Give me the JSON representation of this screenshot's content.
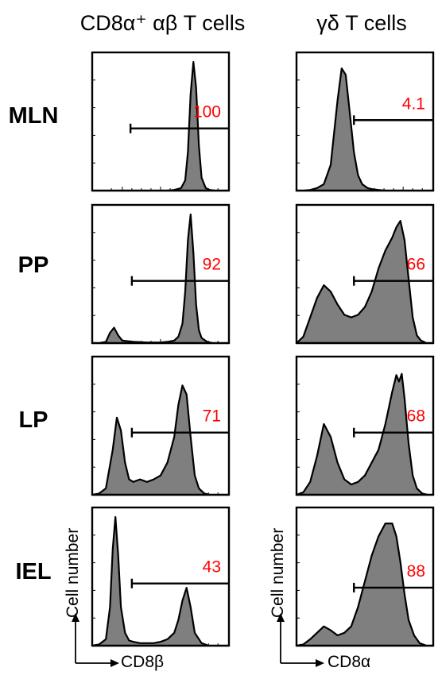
{
  "columns": [
    {
      "title": "CD8α⁺ αβ T cells",
      "xlabel": "CD8β",
      "ylabel": "Cell number"
    },
    {
      "title": "γδ T cells",
      "xlabel": "CD8α",
      "ylabel": "Cell number"
    }
  ],
  "rows": [
    "MLN",
    "PP",
    "LP",
    "IEL"
  ],
  "colors": {
    "fill": "#7f7f7f",
    "stroke": "#000000",
    "gate_label": "#ff0000"
  },
  "chart_data": [
    {
      "type": "area",
      "id": "ab-MLN",
      "gate_label": "100",
      "gate": [
        0.28,
        1.0
      ],
      "gate_level": 0.55,
      "x": [
        0,
        0.05,
        0.1,
        0.15,
        0.2,
        0.25,
        0.3,
        0.35,
        0.4,
        0.45,
        0.5,
        0.55,
        0.6,
        0.65,
        0.68,
        0.7,
        0.72,
        0.74,
        0.76,
        0.78,
        0.8,
        0.83,
        0.86,
        0.9,
        0.95,
        1.0
      ],
      "y": [
        0,
        0,
        0,
        0,
        0,
        0,
        0,
        0,
        0,
        0,
        0,
        0,
        0.005,
        0.02,
        0.08,
        0.3,
        0.75,
        1.0,
        0.8,
        0.35,
        0.1,
        0.02,
        0.005,
        0,
        0,
        0
      ]
    },
    {
      "type": "area",
      "id": "gd-MLN",
      "gate_label": "4.1",
      "gate": [
        0.42,
        1.0
      ],
      "gate_level": 0.49,
      "x": [
        0,
        0.05,
        0.1,
        0.15,
        0.2,
        0.25,
        0.3,
        0.33,
        0.36,
        0.39,
        0.42,
        0.45,
        0.48,
        0.52,
        0.56,
        0.6,
        0.65,
        0.7,
        0.8,
        0.9,
        1.0
      ],
      "y": [
        0,
        0,
        0.005,
        0.02,
        0.05,
        0.2,
        0.7,
        0.95,
        0.9,
        0.6,
        0.3,
        0.12,
        0.05,
        0.02,
        0.01,
        0.005,
        0,
        0,
        0,
        0,
        0
      ]
    },
    {
      "type": "area",
      "id": "ab-PP",
      "gate_label": "92",
      "gate": [
        0.29,
        1.0
      ],
      "gate_level": 0.55,
      "x": [
        0,
        0.05,
        0.1,
        0.13,
        0.16,
        0.19,
        0.22,
        0.3,
        0.4,
        0.5,
        0.55,
        0.6,
        0.63,
        0.66,
        0.68,
        0.7,
        0.72,
        0.74,
        0.76,
        0.78,
        0.8,
        0.84,
        0.88,
        0.92,
        0.96,
        1.0
      ],
      "y": [
        0,
        0,
        0.01,
        0.08,
        0.12,
        0.06,
        0.02,
        0.01,
        0.005,
        0.005,
        0.01,
        0.02,
        0.05,
        0.15,
        0.4,
        0.8,
        1.0,
        0.7,
        0.3,
        0.1,
        0.04,
        0.01,
        0,
        0,
        0,
        0
      ]
    },
    {
      "type": "area",
      "id": "gd-PP",
      "gate_label": "66",
      "gate": [
        0.42,
        1.0
      ],
      "gate_level": 0.55,
      "x": [
        0,
        0.05,
        0.1,
        0.15,
        0.2,
        0.25,
        0.3,
        0.35,
        0.4,
        0.45,
        0.5,
        0.55,
        0.6,
        0.65,
        0.7,
        0.73,
        0.76,
        0.79,
        0.82,
        0.85,
        0.88,
        0.91,
        0.95,
        1.0
      ],
      "y": [
        0,
        0.05,
        0.2,
        0.35,
        0.45,
        0.4,
        0.3,
        0.22,
        0.2,
        0.22,
        0.28,
        0.4,
        0.58,
        0.72,
        0.82,
        0.9,
        0.95,
        0.8,
        0.5,
        0.2,
        0.06,
        0.02,
        0,
        0
      ]
    },
    {
      "type": "area",
      "id": "ab-LP",
      "gate_label": "71",
      "gate": [
        0.29,
        1.0
      ],
      "gate_level": 0.55,
      "x": [
        0,
        0.05,
        0.1,
        0.15,
        0.18,
        0.21,
        0.24,
        0.27,
        0.3,
        0.35,
        0.4,
        0.45,
        0.5,
        0.55,
        0.6,
        0.63,
        0.66,
        0.69,
        0.72,
        0.75,
        0.78,
        0.82,
        0.86,
        0.9,
        1.0
      ],
      "y": [
        0,
        0.01,
        0.05,
        0.35,
        0.6,
        0.5,
        0.25,
        0.12,
        0.1,
        0.12,
        0.1,
        0.12,
        0.15,
        0.25,
        0.45,
        0.7,
        0.85,
        0.78,
        0.45,
        0.15,
        0.05,
        0.01,
        0,
        0,
        0
      ]
    },
    {
      "type": "area",
      "id": "gd-LP",
      "gate_label": "68",
      "gate": [
        0.42,
        1.0
      ],
      "gate_level": 0.55,
      "x": [
        0,
        0.05,
        0.1,
        0.15,
        0.2,
        0.25,
        0.3,
        0.35,
        0.4,
        0.45,
        0.5,
        0.55,
        0.6,
        0.65,
        0.7,
        0.73,
        0.75,
        0.77,
        0.79,
        0.82,
        0.85,
        0.88,
        0.92,
        0.96,
        1.0
      ],
      "y": [
        0,
        0.02,
        0.1,
        0.3,
        0.55,
        0.45,
        0.25,
        0.12,
        0.08,
        0.1,
        0.15,
        0.25,
        0.35,
        0.55,
        0.8,
        0.93,
        0.88,
        0.94,
        0.75,
        0.4,
        0.15,
        0.05,
        0.01,
        0,
        0
      ]
    },
    {
      "type": "area",
      "id": "ab-IEL",
      "gate_label": "43",
      "gate": [
        0.29,
        1.0
      ],
      "gate_level": 0.55,
      "x": [
        0,
        0.05,
        0.1,
        0.13,
        0.15,
        0.17,
        0.19,
        0.21,
        0.24,
        0.27,
        0.3,
        0.35,
        0.4,
        0.45,
        0.5,
        0.55,
        0.6,
        0.63,
        0.66,
        0.69,
        0.72,
        0.75,
        0.8,
        0.85,
        0.9,
        1.0
      ],
      "y": [
        0,
        0.01,
        0.05,
        0.3,
        0.75,
        1.0,
        0.7,
        0.3,
        0.1,
        0.04,
        0.03,
        0.02,
        0.02,
        0.02,
        0.03,
        0.05,
        0.1,
        0.2,
        0.35,
        0.45,
        0.3,
        0.1,
        0.02,
        0,
        0,
        0
      ]
    },
    {
      "type": "area",
      "id": "gd-IEL",
      "gate_label": "88",
      "gate": [
        0.42,
        1.0
      ],
      "gate_level": 0.58,
      "x": [
        0,
        0.05,
        0.1,
        0.15,
        0.2,
        0.25,
        0.3,
        0.35,
        0.4,
        0.45,
        0.5,
        0.55,
        0.6,
        0.65,
        0.7,
        0.73,
        0.76,
        0.79,
        0.82,
        0.86,
        0.9,
        0.95,
        1.0
      ],
      "y": [
        0,
        0.01,
        0.05,
        0.1,
        0.15,
        0.12,
        0.08,
        0.1,
        0.15,
        0.3,
        0.5,
        0.7,
        0.85,
        0.95,
        0.95,
        0.85,
        0.65,
        0.4,
        0.2,
        0.08,
        0.02,
        0,
        0
      ]
    }
  ]
}
